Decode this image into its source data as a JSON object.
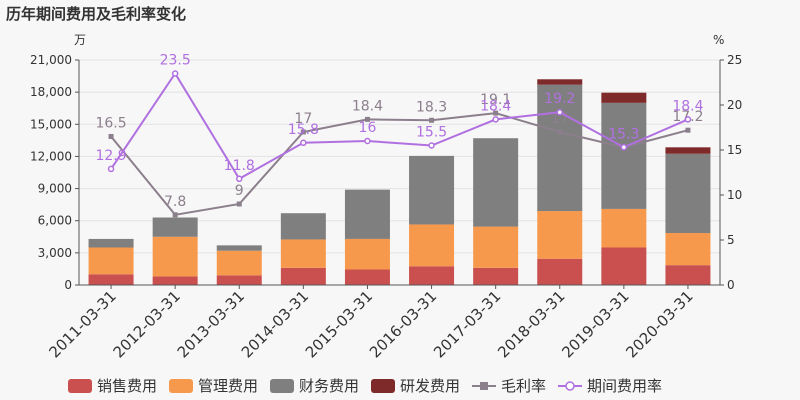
{
  "chart_data": {
    "type": "bar",
    "title": "历年期间费用及毛利率变化",
    "left_unit": "万",
    "right_unit": "%",
    "categories": [
      "2011-03-31",
      "2012-03-31",
      "2013-03-31",
      "2014-03-31",
      "2015-03-31",
      "2016-03-31",
      "2017-03-31",
      "2018-03-31",
      "2019-03-31",
      "2020-03-31"
    ],
    "y_left": {
      "ticks": [
        "0",
        "3,000",
        "6,000",
        "9,000",
        "12,000",
        "15,000",
        "18,000",
        "21,000"
      ],
      "ylim": [
        0,
        21000
      ]
    },
    "y_right": {
      "ticks": [
        "0",
        "5",
        "10",
        "15",
        "20",
        "25"
      ],
      "ylim": [
        0,
        25
      ]
    },
    "stacked_series": [
      {
        "name": "销售费用",
        "color": "#c9504e",
        "values": [
          1000,
          800,
          900,
          1600,
          1450,
          1750,
          1600,
          2450,
          3500,
          1850
        ]
      },
      {
        "name": "管理费用",
        "color": "#f7994d",
        "values": [
          2500,
          3700,
          2300,
          2650,
          2850,
          3900,
          3850,
          4450,
          3600,
          3000
        ]
      },
      {
        "name": "财务费用",
        "color": "#7f7f7f",
        "values": [
          800,
          1800,
          500,
          2450,
          4600,
          6400,
          8250,
          11800,
          9900,
          7400
        ]
      },
      {
        "name": "研发费用",
        "color": "#7f2a2a",
        "values": [
          0,
          0,
          0,
          0,
          0,
          0,
          0,
          500,
          950,
          600
        ]
      }
    ],
    "line_series": [
      {
        "name": "毛利率",
        "color": "#8c7f8c",
        "values": [
          16.5,
          7.8,
          9,
          17,
          18.4,
          18.3,
          19.1,
          17,
          15.3,
          17.2
        ],
        "labels": [
          "16.5",
          "7.8",
          "9",
          "17",
          "18.4",
          "18.3",
          "19.1",
          "17",
          "15.3",
          "17.2"
        ]
      },
      {
        "name": "期间费用率",
        "color": "#b070e0",
        "values": [
          12.9,
          23.5,
          11.8,
          15.8,
          16,
          15.5,
          18.4,
          19.2,
          15.3,
          18.4
        ],
        "labels": [
          "12.9",
          "23.5",
          "11.8",
          "15.8",
          "16",
          "15.5",
          "18.4",
          "19.2",
          "15.3",
          "18.4"
        ]
      }
    ]
  }
}
